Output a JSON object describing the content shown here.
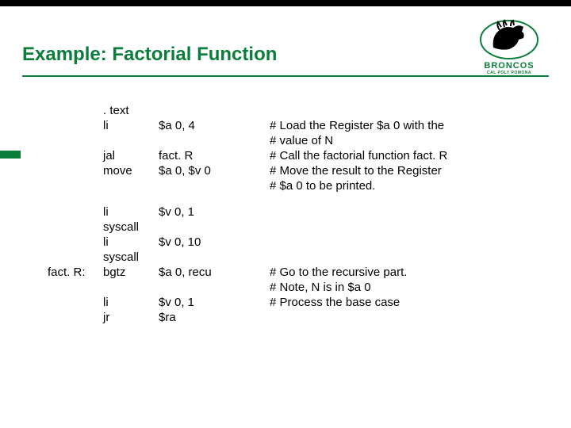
{
  "colors": {
    "brand": "#0a7d3a",
    "text": "#000000",
    "background": "#ffffff",
    "topbar": "#000000"
  },
  "logo": {
    "name": "BRONCOS",
    "sub": "CAL POLY POMONA"
  },
  "title": "Example: Factorial Function",
  "code": {
    "rows": [
      {
        "label": "",
        "instr": ". text",
        "args": "",
        "comment": ""
      },
      {
        "label": "",
        "instr": "li",
        "args": "$a 0, 4",
        "comment": "# Load the Register $a 0 with the"
      },
      {
        "label": "",
        "instr": "",
        "args": "",
        "comment": "# value of N"
      },
      {
        "label": "",
        "instr": "jal",
        "args": "fact. R",
        "comment": "# Call the factorial function fact. R"
      },
      {
        "label": "",
        "instr": "move",
        "args": "$a 0, $v 0",
        "comment": "# Move the result to the Register"
      },
      {
        "label": "",
        "instr": "",
        "args": "",
        "comment": "# $a 0 to be printed."
      },
      {
        "spacer": true
      },
      {
        "label": "",
        "instr": "li",
        "args": "$v 0, 1",
        "comment": ""
      },
      {
        "label": "",
        "instr": "syscall",
        "args": "",
        "comment": ""
      },
      {
        "label": "",
        "instr": "li",
        "args": "$v 0, 10",
        "comment": ""
      },
      {
        "label": "",
        "instr": "syscall",
        "args": "",
        "comment": ""
      },
      {
        "label": "fact. R:",
        "instr": "bgtz",
        "args": "$a 0, recu",
        "comment": "# Go to the recursive part."
      },
      {
        "label": "",
        "instr": "",
        "args": "",
        "comment": "# Note, N is in $a 0"
      },
      {
        "label": "",
        "instr": "li",
        "args": "$v 0, 1",
        "comment": "# Process the base case"
      },
      {
        "label": "",
        "instr": "jr",
        "args": "$ra",
        "comment": ""
      }
    ]
  }
}
